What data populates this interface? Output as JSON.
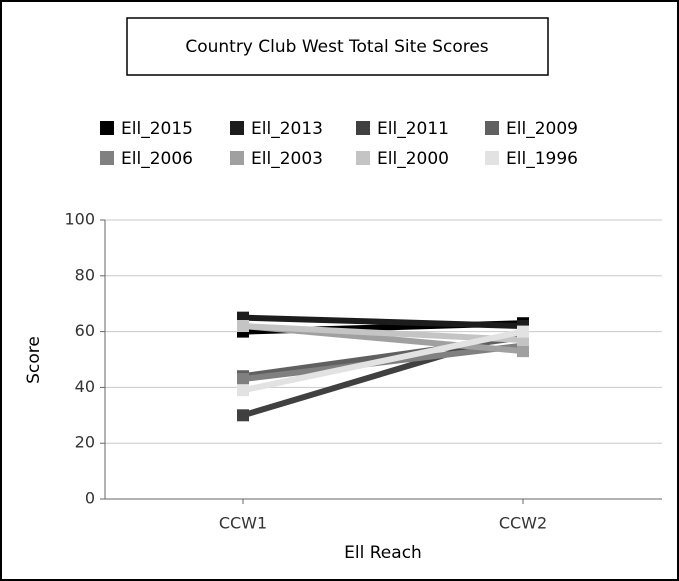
{
  "chart_data": {
    "type": "line",
    "title": "Country Club West Total Site Scores",
    "x_label": "Ell Reach",
    "y_label": "Score",
    "categories": [
      "CCW1",
      "CCW2"
    ],
    "series": [
      {
        "name": "Ell_2015",
        "color": "#000000",
        "values": [
          60,
          63
        ]
      },
      {
        "name": "Ell_2013",
        "color": "#1c1c1c",
        "values": [
          65,
          62
        ]
      },
      {
        "name": "Ell_2011",
        "color": "#404040",
        "values": [
          30,
          60
        ]
      },
      {
        "name": "Ell_2009",
        "color": "#606060",
        "values": [
          44,
          58
        ]
      },
      {
        "name": "Ell_2006",
        "color": "#808080",
        "values": [
          43,
          55
        ]
      },
      {
        "name": "Ell_2003",
        "color": "#a0a0a0",
        "values": [
          62,
          53
        ]
      },
      {
        "name": "Ell_2000",
        "color": "#c4c4c4",
        "values": [
          62,
          57
        ]
      },
      {
        "name": "Ell_1996",
        "color": "#e2e2e2",
        "values": [
          39,
          60
        ]
      }
    ],
    "ylim": [
      0,
      100
    ],
    "yticks": [
      0,
      20,
      40,
      60,
      80,
      100
    ],
    "grid": true
  }
}
